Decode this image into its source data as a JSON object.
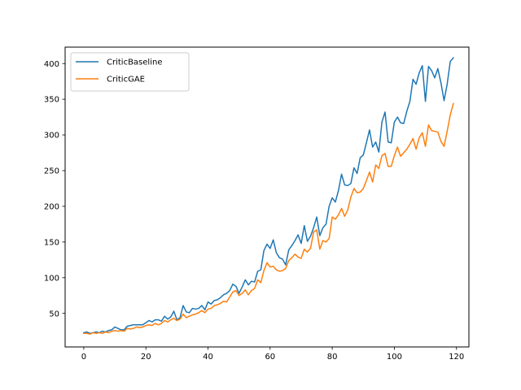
{
  "chart_data": {
    "type": "line",
    "title": "",
    "xlabel": "",
    "ylabel": "",
    "xlim": [
      -6,
      124
    ],
    "ylim": [
      3,
      423
    ],
    "xticks": [
      0,
      20,
      40,
      60,
      80,
      100,
      120
    ],
    "yticks": [
      50,
      100,
      150,
      200,
      250,
      300,
      350,
      400
    ],
    "grid": false,
    "legend_position": "top-left",
    "x": [
      0,
      1,
      2,
      3,
      4,
      5,
      6,
      7,
      8,
      9,
      10,
      11,
      12,
      13,
      14,
      15,
      16,
      17,
      18,
      19,
      20,
      21,
      22,
      23,
      24,
      25,
      26,
      27,
      28,
      29,
      30,
      31,
      32,
      33,
      34,
      35,
      36,
      37,
      38,
      39,
      40,
      41,
      42,
      43,
      44,
      45,
      46,
      47,
      48,
      49,
      50,
      51,
      52,
      53,
      54,
      55,
      56,
      57,
      58,
      59,
      60,
      61,
      62,
      63,
      64,
      65,
      66,
      67,
      68,
      69,
      70,
      71,
      72,
      73,
      74,
      75,
      76,
      77,
      78,
      79,
      80,
      81,
      82,
      83,
      84,
      85,
      86,
      87,
      88,
      89,
      90,
      91,
      92,
      93,
      94,
      95,
      96,
      97,
      98,
      99,
      100,
      101,
      102,
      103,
      104,
      105,
      106,
      107,
      108,
      109,
      110,
      111,
      112,
      113,
      114,
      115,
      116,
      117,
      118,
      119
    ],
    "series": [
      {
        "name": "CriticBaseline",
        "color": "#1f77b4",
        "values": [
          23,
          24,
          22,
          23,
          24,
          23,
          25,
          24,
          26,
          27,
          31,
          29,
          27,
          27,
          32,
          33,
          34,
          34,
          34,
          34,
          37,
          40,
          38,
          41,
          41,
          39,
          46,
          42,
          45,
          53,
          41,
          44,
          61,
          52,
          51,
          57,
          56,
          57,
          61,
          55,
          66,
          63,
          68,
          69,
          72,
          76,
          78,
          82,
          91,
          88,
          78,
          87,
          97,
          90,
          95,
          94,
          109,
          111,
          138,
          147,
          141,
          153,
          135,
          128,
          126,
          118,
          139,
          145,
          152,
          160,
          148,
          173,
          151,
          158,
          170,
          185,
          159,
          170,
          175,
          200,
          212,
          206,
          222,
          245,
          230,
          229,
          232,
          254,
          246,
          268,
          272,
          289,
          307,
          283,
          290,
          276,
          318,
          332,
          290,
          289,
          318,
          325,
          317,
          316,
          333,
          347,
          378,
          371,
          387,
          397,
          347,
          396,
          390,
          380,
          393,
          373,
          348,
          371,
          403,
          408
        ]
      },
      {
        "name": "CriticGAE",
        "color": "#ff7f0e",
        "values": [
          22,
          22,
          21,
          23,
          22,
          23,
          22,
          24,
          23,
          25,
          26,
          25,
          26,
          25,
          29,
          28,
          29,
          31,
          30,
          31,
          33,
          34,
          33,
          36,
          34,
          36,
          40,
          38,
          41,
          43,
          40,
          42,
          49,
          44,
          46,
          48,
          49,
          51,
          54,
          51,
          56,
          57,
          61,
          62,
          64,
          67,
          66,
          73,
          80,
          82,
          75,
          78,
          83,
          76,
          82,
          85,
          97,
          93,
          110,
          121,
          115,
          116,
          111,
          109,
          110,
          113,
          124,
          128,
          133,
          129,
          127,
          140,
          136,
          141,
          164,
          167,
          140,
          152,
          150,
          155,
          185,
          182,
          188,
          197,
          186,
          195,
          213,
          225,
          219,
          220,
          225,
          236,
          248,
          234,
          258,
          253,
          271,
          274,
          256,
          256,
          271,
          283,
          270,
          275,
          280,
          287,
          295,
          280,
          296,
          303,
          284,
          314,
          306,
          305,
          304,
          291,
          284,
          305,
          328,
          344
        ]
      }
    ]
  }
}
